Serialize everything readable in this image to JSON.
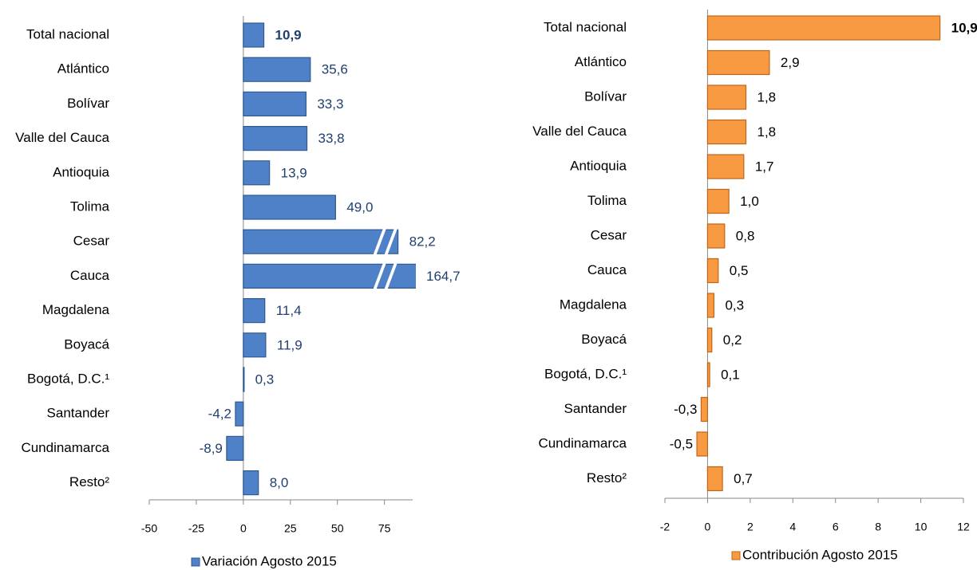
{
  "chart_data": [
    {
      "type": "bar",
      "orientation": "horizontal",
      "categories": [
        "Total nacional",
        "Atlántico",
        "Bolívar",
        "Valle del Cauca",
        "Antioquia",
        "Tolima",
        "Cesar",
        "Cauca",
        "Magdalena",
        "Boyacá",
        "Bogotá, D.C.¹",
        "Santander",
        "Cundinamarca",
        "Resto²"
      ],
      "series": [
        {
          "name": "Variación Agosto 2015",
          "color": "#4f81c9",
          "values": [
            10.9,
            35.6,
            33.3,
            33.8,
            13.9,
            49.0,
            82.2,
            164.7,
            11.4,
            11.9,
            0.3,
            -4.2,
            -8.9,
            8.0
          ],
          "value_labels": [
            "10,9",
            "35,6",
            "33,3",
            "33,8",
            "13,9",
            "49,0",
            "82,2",
            "164,7",
            "11,4",
            "11,9",
            "0,3",
            "-4,2",
            "-8,9",
            "8,0"
          ]
        }
      ],
      "xlim": [
        -50,
        90
      ],
      "xticks": [
        -50,
        -25,
        0,
        25,
        50,
        75
      ],
      "legend": "bottom"
    },
    {
      "type": "bar",
      "orientation": "horizontal",
      "categories": [
        "Total nacional",
        "Atlántico",
        "Bolívar",
        "Valle del Cauca",
        "Antioquia",
        "Tolima",
        "Cesar",
        "Cauca",
        "Magdalena",
        "Boyacá",
        "Bogotá, D.C.¹",
        "Santander",
        "Cundinamarca",
        "Resto²"
      ],
      "series": [
        {
          "name": "Contribución Agosto 2015",
          "color": "#f79a42",
          "values": [
            10.9,
            2.9,
            1.8,
            1.8,
            1.7,
            1.0,
            0.8,
            0.5,
            0.3,
            0.2,
            0.1,
            -0.3,
            -0.5,
            0.7
          ],
          "value_labels": [
            "10,9",
            "2,9",
            "1,8",
            "1,8",
            "1,7",
            "1,0",
            "0,8",
            "0,5",
            "0,3",
            "0,2",
            "0,1",
            "-0,3",
            "-0,5",
            "0,7"
          ]
        }
      ],
      "xlim": [
        -2,
        12
      ],
      "xticks": [
        -2,
        0,
        2,
        4,
        6,
        8,
        10,
        12
      ],
      "legend": "bottom"
    }
  ]
}
